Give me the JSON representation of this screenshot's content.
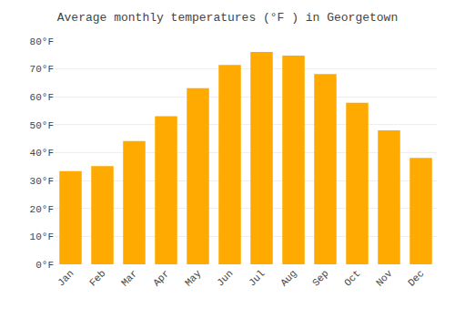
{
  "chart_data": {
    "type": "bar",
    "title": "Average monthly temperatures (°F ) in Georgetown",
    "categories": [
      "Jan",
      "Feb",
      "Mar",
      "Apr",
      "May",
      "Jun",
      "Jul",
      "Aug",
      "Sep",
      "Oct",
      "Nov",
      "Dec"
    ],
    "values": [
      33.4,
      35.2,
      44.2,
      53.1,
      63.1,
      71.4,
      76.1,
      74.8,
      68.2,
      57.9,
      48.0,
      38.1
    ],
    "color": "#FFAA00",
    "ylim": [
      0,
      80
    ],
    "yticks": [
      {
        "value": 0,
        "label": "0°F"
      },
      {
        "value": 10,
        "label": "10°F"
      },
      {
        "value": 20,
        "label": "20°F"
      },
      {
        "value": 30,
        "label": "30°F"
      },
      {
        "value": 40,
        "label": "40°F"
      },
      {
        "value": 50,
        "label": "50°F"
      },
      {
        "value": 60,
        "label": "60°F"
      },
      {
        "value": 70,
        "label": "70°F"
      },
      {
        "value": 80,
        "label": "80°F"
      }
    ],
    "grid": true
  }
}
